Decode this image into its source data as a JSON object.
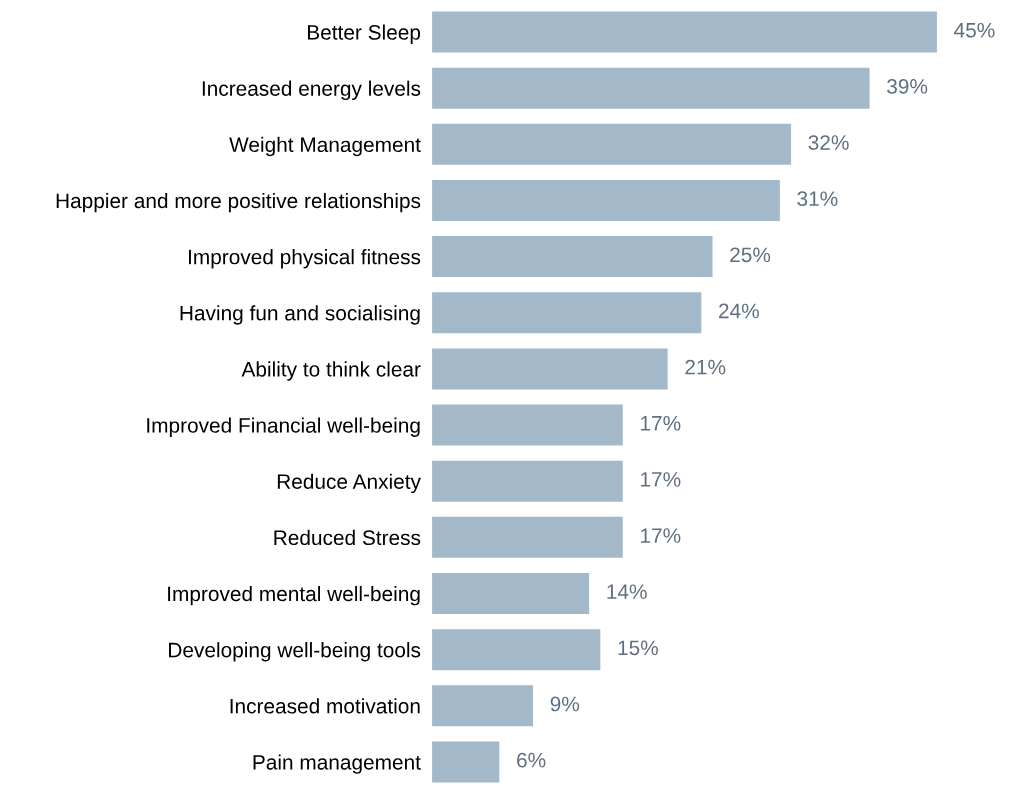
{
  "chart_data": {
    "type": "bar",
    "orientation": "horizontal",
    "categories": [
      "Better Sleep",
      "Increased energy levels",
      "Weight Management",
      "Happier and more positive relationships",
      "Improved physical fitness",
      "Having fun and socialising",
      "Ability to think clear",
      "Improved Financial well-being",
      "Reduce Anxiety",
      "Reduced Stress",
      "Improved mental well-being",
      "Developing well-being tools",
      "Increased motivation",
      "Pain management"
    ],
    "values": [
      45,
      39,
      32,
      31,
      25,
      24,
      21,
      17,
      17,
      17,
      14,
      15,
      9,
      6
    ],
    "value_labels": [
      "45%",
      "39%",
      "32%",
      "31%",
      "25%",
      "24%",
      "21%",
      "17%",
      "17%",
      "17%",
      "14%",
      "15%",
      "9%",
      "6%"
    ],
    "color": "#a3b8c8"
  }
}
